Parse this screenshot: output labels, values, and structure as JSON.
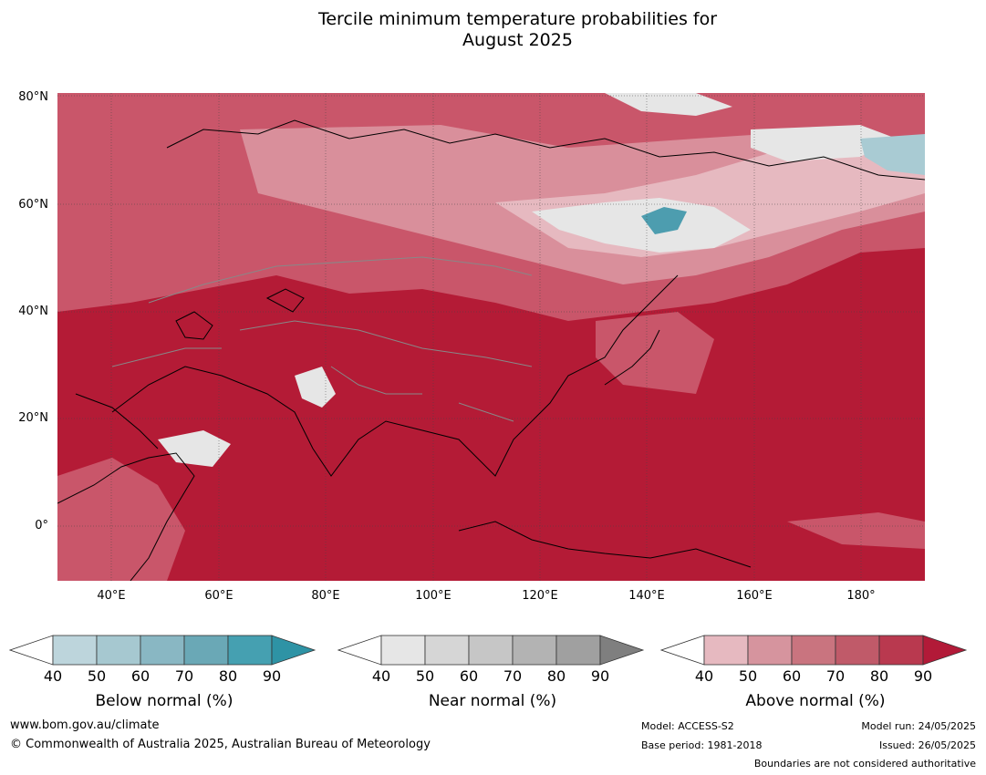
{
  "title_line1": "Tercile minimum temperature probabilities for",
  "title_line2": "August 2025",
  "map": {
    "lat_labels": [
      "80°N",
      "60°N",
      "40°N",
      "20°N",
      "0°"
    ],
    "lon_labels": [
      "40°E",
      "60°E",
      "80°E",
      "100°E",
      "120°E",
      "140°E",
      "160°E",
      "180°"
    ],
    "colors": {
      "above_base": "#b41b36",
      "above_mid": "#c9566a",
      "above_light": "#d98f9b",
      "above_pale": "#e6b9c0",
      "near_normal": "#e6e6e6",
      "below_light": "#a9cbd3",
      "below_mid": "#4d9daf",
      "coastline": "#000000",
      "borders": "#888888",
      "grid": "#444444"
    }
  },
  "colorbars": {
    "below": {
      "caption": "Below normal (%)",
      "ticks": [
        "40",
        "50",
        "60",
        "70",
        "80",
        "90"
      ],
      "colors": [
        "#ffffff",
        "#bdd5dc",
        "#a6c8d0",
        "#89b7c3",
        "#6aa8b6",
        "#45a0b1",
        "#2e93a5"
      ]
    },
    "near": {
      "caption": "Near normal (%)",
      "ticks": [
        "40",
        "50",
        "60",
        "70",
        "80",
        "90"
      ],
      "colors": [
        "#ffffff",
        "#e6e6e6",
        "#d6d6d6",
        "#c6c6c6",
        "#b3b3b3",
        "#a0a0a0",
        "#7f7f7f"
      ]
    },
    "above": {
      "caption": "Above normal (%)",
      "ticks": [
        "40",
        "50",
        "60",
        "70",
        "80",
        "90"
      ],
      "colors": [
        "#ffffff",
        "#e6b9c0",
        "#d6949e",
        "#c9747f",
        "#c05a69",
        "#b9394f",
        "#b21a38"
      ]
    }
  },
  "footer": {
    "website": "www.bom.gov.au/climate",
    "copyright": "© Commonwealth of Australia 2025, Australian Bureau of Meteorology",
    "model": "Model: ACCESS-S2",
    "base_period": "Base period: 1981-2018",
    "model_run": "Model run: 24/05/2025",
    "issued": "Issued: 26/05/2025",
    "disclaimer": "Boundaries are not considered authoritative"
  }
}
